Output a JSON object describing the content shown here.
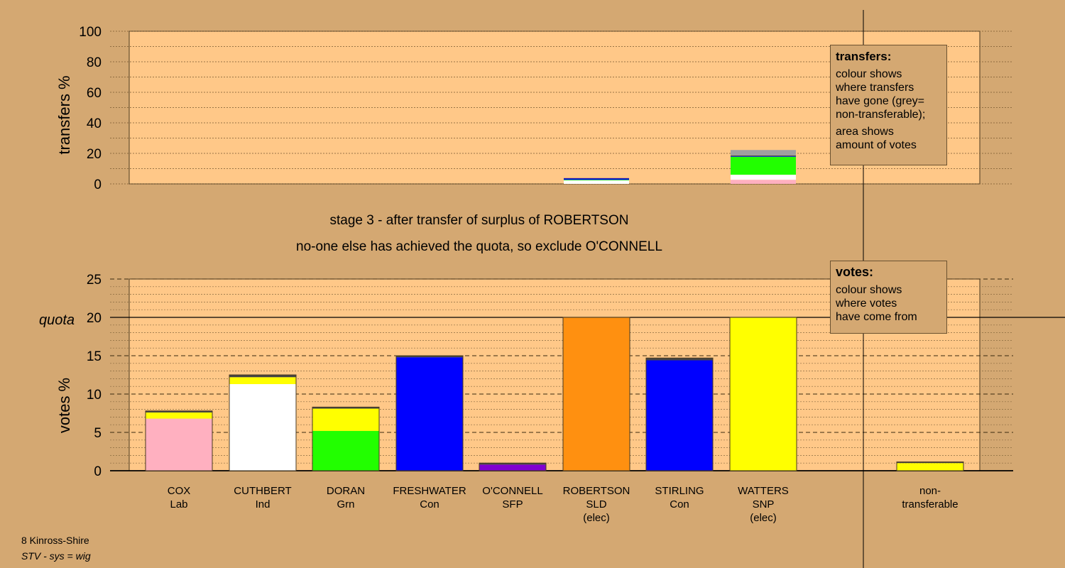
{
  "chart_data": [
    {
      "type": "bar",
      "ylabel": "transfers %",
      "ylim": [
        0,
        100
      ],
      "yticks": [
        0,
        20,
        40,
        60,
        80,
        100
      ],
      "grid": true,
      "categories": [
        "COX",
        "CUTHBERT",
        "DORAN",
        "FRESHWATER",
        "O'CONNELL",
        "ROBERTSON",
        "STIRLING",
        "WATTERS",
        "non-transferable"
      ],
      "stacks": [
        [],
        [],
        [],
        [],
        [],
        [
          {
            "value": 2.3,
            "color": "#ffffff"
          },
          {
            "value": 0.4,
            "color": "#00ff00"
          },
          {
            "value": 0.8,
            "color": "#0000ff"
          },
          {
            "value": 0.3,
            "color": "#444444"
          }
        ],
        [],
        [
          {
            "value": 2.7,
            "color": "#ffb0c0"
          },
          {
            "value": 3.3,
            "color": "#ffffff"
          },
          {
            "value": 11.8,
            "color": "#22ff00"
          },
          {
            "value": 0.4,
            "color": "#0000ff"
          },
          {
            "value": 0.5,
            "color": "#444444"
          },
          {
            "value": 3.5,
            "color": "#a0a0a0"
          }
        ],
        []
      ]
    },
    {
      "type": "bar",
      "ylabel": "votes %",
      "ylim": [
        0,
        25
      ],
      "yticks": [
        0,
        5,
        10,
        15,
        20,
        25
      ],
      "quota": 20,
      "quota_label": "quota",
      "grid": true,
      "categories": [
        "COX",
        "CUTHBERT",
        "DORAN",
        "FRESHWATER",
        "O'CONNELL",
        "ROBERTSON",
        "STIRLING",
        "WATTERS",
        "non-transferable"
      ],
      "stacks": [
        [
          {
            "value": 6.8,
            "color": "#ffb0c0"
          },
          {
            "value": 0.8,
            "color": "#ffff00"
          },
          {
            "value": 0.2,
            "color": "#444444"
          }
        ],
        [
          {
            "value": 11.3,
            "color": "#ffffff"
          },
          {
            "value": 0.9,
            "color": "#ffff00"
          },
          {
            "value": 0.3,
            "color": "#444444"
          }
        ],
        [
          {
            "value": 5.2,
            "color": "#22ff00"
          },
          {
            "value": 2.9,
            "color": "#ffff00"
          },
          {
            "value": 0.2,
            "color": "#444444"
          }
        ],
        [
          {
            "value": 14.8,
            "color": "#0000ff"
          },
          {
            "value": 0.2,
            "color": "#444444"
          }
        ],
        [
          {
            "value": 0.8,
            "color": "#8000d0"
          },
          {
            "value": 0.2,
            "color": "#444444"
          }
        ],
        [
          {
            "value": 20,
            "color": "#ff9010"
          }
        ],
        [
          {
            "value": 14.4,
            "color": "#0000ff"
          },
          {
            "value": 0.3,
            "color": "#444444"
          }
        ],
        [
          {
            "value": 20,
            "color": "#ffff00"
          }
        ],
        [
          {
            "value": 1.0,
            "color": "#ffff00"
          },
          {
            "value": 0.15,
            "color": "#444444"
          }
        ]
      ]
    }
  ],
  "candidates": [
    {
      "name": "COX",
      "party": "Lab",
      "note": ""
    },
    {
      "name": "CUTHBERT",
      "party": "Ind",
      "note": ""
    },
    {
      "name": "DORAN",
      "party": "Grn",
      "note": ""
    },
    {
      "name": "FRESHWATER",
      "party": "Con",
      "note": ""
    },
    {
      "name": "O'CONNELL",
      "party": "SFP",
      "note": ""
    },
    {
      "name": "ROBERTSON",
      "party": "SLD",
      "note": "(elec)"
    },
    {
      "name": "STIRLING",
      "party": "Con",
      "note": ""
    },
    {
      "name": "WATTERS",
      "party": "SNP",
      "note": "(elec)"
    },
    {
      "name": "non-",
      "party": "transferable",
      "note": ""
    }
  ],
  "stage": {
    "line1": "stage 3 - after transfer of surplus of ROBERTSON",
    "line2": "no-one else has achieved the quota, so exclude O'CONNELL"
  },
  "legend_transfers": {
    "title": "transfers:",
    "text1": "colour shows\nwhere transfers\nhave gone (grey=\nnon-transferable);",
    "text2": "area shows\namount of votes"
  },
  "legend_votes": {
    "title": "votes:",
    "text1": "colour shows\nwhere votes\nhave come from"
  },
  "footer": {
    "line1": "8 Kinross-Shire",
    "line2": "STV - sys = wig"
  },
  "colors": {
    "background": "#d4a872",
    "plot_bg": "#ffc888",
    "bar_outline": "#4a3a20"
  }
}
